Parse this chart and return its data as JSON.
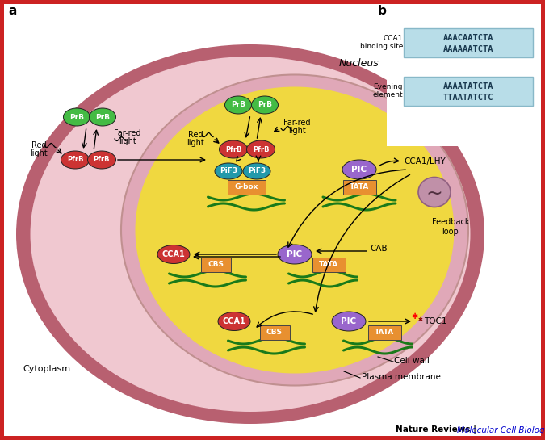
{
  "bg_outer": "#cc2222",
  "bg_cell_wall": "#b86070",
  "bg_cytoplasm": "#f0c8d0",
  "bg_nucleus_outer": "#e0a8b8",
  "bg_nucleus_inner": "#f0d840",
  "label_a": "a",
  "label_b": "b",
  "footer_bold": "Nature Reviews",
  "footer_italic": "Molecular Cell Biology",
  "cca1_seq1": "AAACAATCTA",
  "cca1_seq2": "AAAAAATCTA",
  "eve_seq1": "AAAATATCTA",
  "eve_seq2": "TTAATATCTC",
  "cca1_label1": "CCA1",
  "cca1_label2": "binding site",
  "eve_label1": "Evening",
  "eve_label2": "element",
  "nucleus_label": "Nucleus",
  "cytoplasm_label": "Cytoplasm",
  "cell_wall_label": "Cell wall",
  "plasma_membrane_label": "Plasma membrane",
  "feedback_label1": "Feedback",
  "feedback_label2": "loop",
  "cca1lhy_label": "CCA1/LHY",
  "cab_label": "CAB",
  "prb_color": "#44bb44",
  "pfrb_color": "#cc3333",
  "pif3_color": "#2299aa",
  "pic_color": "#9966cc",
  "cca1_color": "#cc3333",
  "tata_color": "#e89030",
  "gbox_color": "#e89030",
  "cbs_color": "#e89030",
  "dna_color": "#1a7a1a",
  "clock_color": "#c090a8",
  "toc1_color": "#cc3333"
}
